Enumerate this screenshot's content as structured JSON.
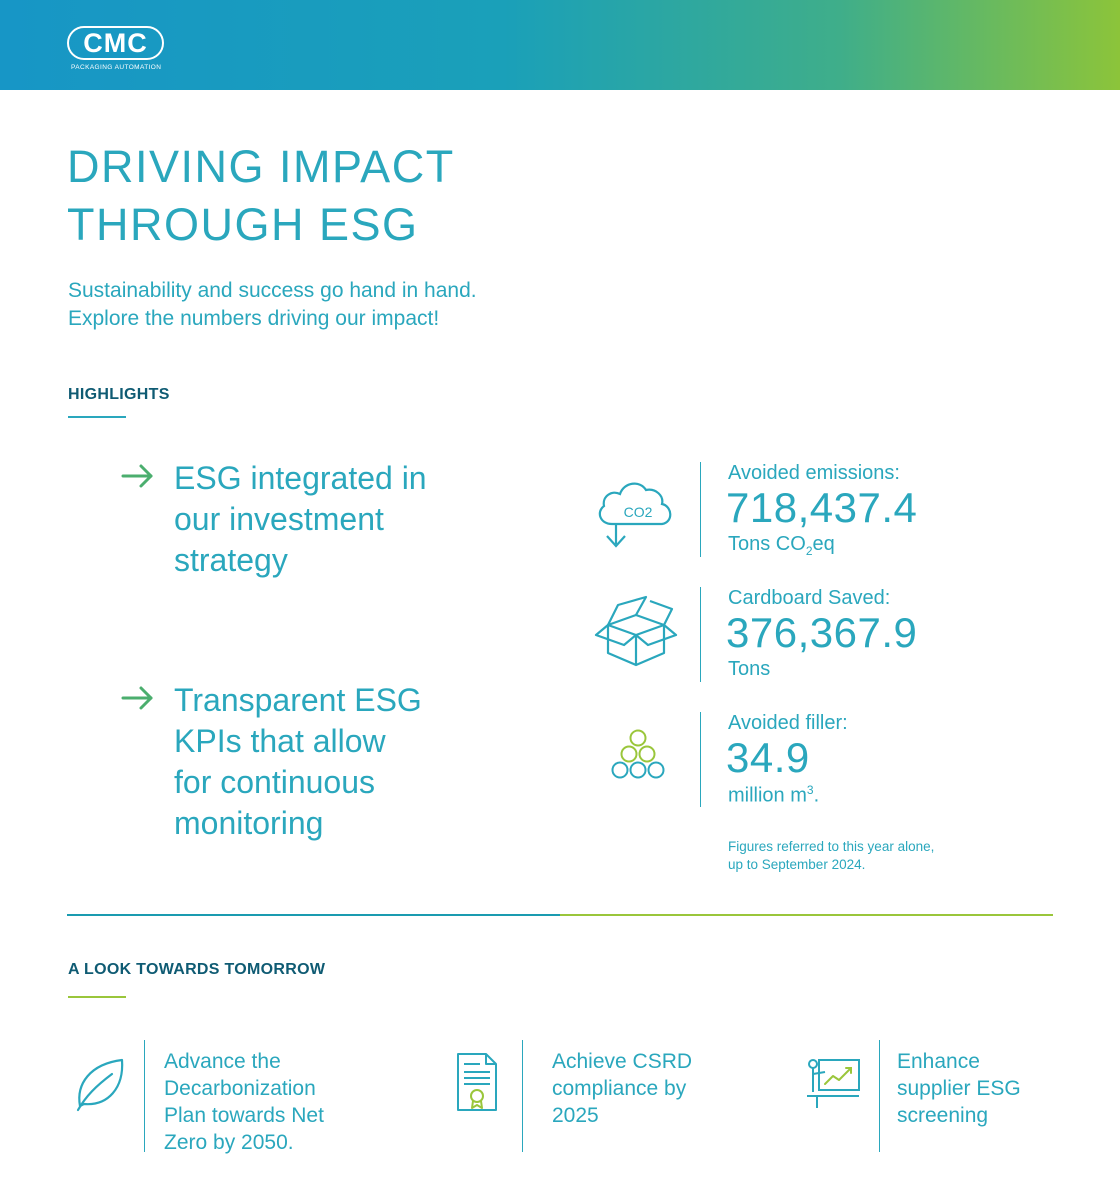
{
  "header": {
    "logo_text": "CMC",
    "logo_subtitle": "PACKAGING AUTOMATION"
  },
  "title": {
    "line1": "DRIVING IMPACT",
    "line2": "THROUGH ESG"
  },
  "subtitle": {
    "line1": "Sustainability and success go hand in hand.",
    "line2": "Explore the numbers driving our impact!"
  },
  "highlights": {
    "label": "HIGHLIGHTS",
    "bullets": [
      {
        "lines": [
          "ESG integrated in",
          "our investment",
          "strategy"
        ]
      },
      {
        "lines": [
          "Transparent ESG",
          "KPIs that allow",
          "for continuous",
          "monitoring"
        ]
      }
    ]
  },
  "stats": [
    {
      "label": "Avoided emissions:",
      "value": "718,437.4",
      "unit_main": "Tons CO",
      "unit_sub": "2",
      "unit_tail": "eq",
      "icon": "co2-cloud-icon",
      "icon_text": "CO2"
    },
    {
      "label": "Cardboard Saved:",
      "value": "376,367.9",
      "unit_main": "Tons",
      "icon": "open-box-icon"
    },
    {
      "label": "Avoided filler:",
      "value": "34.9",
      "unit_main": "million m",
      "unit_sup": "3",
      "unit_tail": ".",
      "icon": "filler-pellets-icon"
    }
  ],
  "footnote": {
    "line1": "Figures referred to this year alone,",
    "line2": "up to September 2024."
  },
  "tomorrow": {
    "label": "A LOOK TOWARDS TOMORROW",
    "goals": [
      {
        "lines": [
          "Advance the",
          "Decarbonization",
          "Plan towards Net",
          "Zero by 2050."
        ],
        "icon": "leaf-icon"
      },
      {
        "lines": [
          "Achieve CSRD",
          "compliance by",
          "2025"
        ],
        "icon": "certificate-document-icon"
      },
      {
        "lines": [
          "Enhance",
          "supplier ESG",
          "screening"
        ],
        "icon": "presentation-chart-icon"
      }
    ]
  },
  "colors": {
    "teal": "#2aa7bd",
    "dark_teal": "#0f5b73",
    "green": "#4bae6e",
    "lime": "#9ac63b"
  }
}
